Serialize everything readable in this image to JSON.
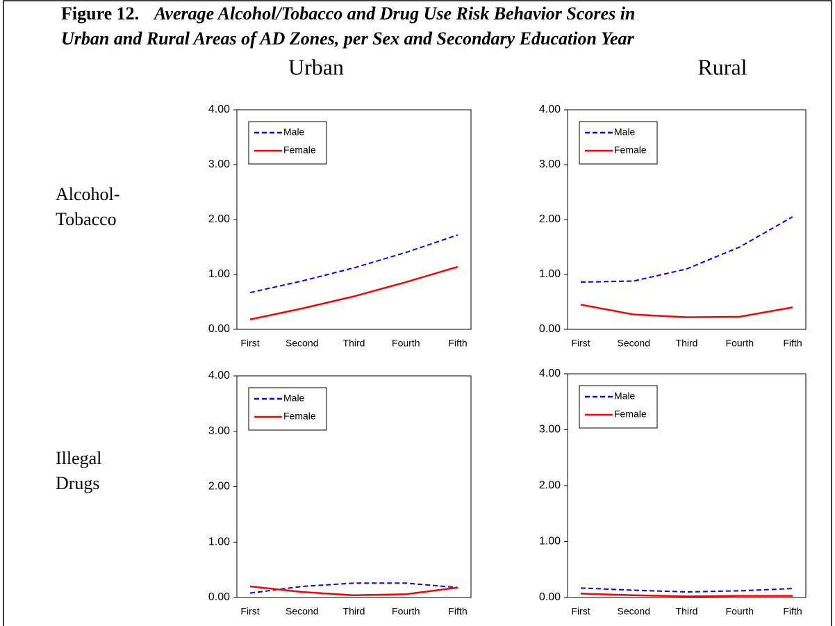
{
  "figure_label": "Figure 12.",
  "title_lines": [
    "Average Alcohol/Tobacco and Drug Use Risk Behavior Scores in",
    "Urban and Rural Areas of AD Zones, per Sex and Secondary Education Year"
  ],
  "columns": [
    "Urban",
    "Rural"
  ],
  "rows": [
    [
      "Alcohol-",
      "Tobacco"
    ],
    [
      "Illegal",
      "Drugs"
    ]
  ],
  "chart_data": [
    {
      "type": "line",
      "categories": [
        "First",
        "Second",
        "Third",
        "Fourth",
        "Fifth"
      ],
      "series": [
        {
          "name": "Male",
          "color": "#0000ff",
          "line_style": "dashed",
          "values": [
            0.67,
            0.88,
            1.12,
            1.4,
            1.72
          ]
        },
        {
          "name": "Female",
          "color": "#ff0000",
          "line_style": "solid",
          "values": [
            0.18,
            0.38,
            0.6,
            0.86,
            1.14
          ]
        }
      ],
      "ylim": [
        0,
        4
      ],
      "yticks": [
        {
          "value": 0,
          "label": "0.00"
        },
        {
          "value": 1,
          "label": "1.00"
        },
        {
          "value": 2,
          "label": "2.00"
        },
        {
          "value": 3,
          "label": "3.00"
        },
        {
          "value": 4,
          "label": "4.00"
        }
      ],
      "legend": "upper left"
    },
    {
      "type": "line",
      "categories": [
        "First",
        "Second",
        "Third",
        "Fourth",
        "Fifth"
      ],
      "series": [
        {
          "name": "Male",
          "color": "#0000ff",
          "line_style": "dashed",
          "values": [
            0.86,
            0.88,
            1.1,
            1.5,
            2.05
          ]
        },
        {
          "name": "Female",
          "color": "#ff0000",
          "line_style": "solid",
          "values": [
            0.45,
            0.27,
            0.22,
            0.23,
            0.4
          ]
        }
      ],
      "ylim": [
        0,
        4
      ],
      "yticks": [
        {
          "value": 0,
          "label": "0.00"
        },
        {
          "value": 1,
          "label": "1.00"
        },
        {
          "value": 2,
          "label": "2.00"
        },
        {
          "value": 3,
          "label": "3.00"
        },
        {
          "value": 4,
          "label": "4.00"
        }
      ],
      "legend": "upper left"
    },
    {
      "type": "line",
      "categories": [
        "First",
        "Second",
        "Third",
        "Fourth",
        "Fifth"
      ],
      "series": [
        {
          "name": "Male",
          "color": "#0000ff",
          "line_style": "dashed",
          "values": [
            0.08,
            0.2,
            0.26,
            0.26,
            0.18
          ]
        },
        {
          "name": "Female",
          "color": "#ff0000",
          "line_style": "solid",
          "values": [
            0.2,
            0.1,
            0.04,
            0.06,
            0.18
          ]
        }
      ],
      "ylim": [
        0,
        4
      ],
      "yticks": [
        {
          "value": 0,
          "label": "0.00"
        },
        {
          "value": 1,
          "label": "1.00"
        },
        {
          "value": 2,
          "label": "2.00"
        },
        {
          "value": 3,
          "label": "3.00"
        },
        {
          "value": 4,
          "label": "4.00"
        }
      ],
      "legend": "upper left"
    },
    {
      "type": "line",
      "categories": [
        "First",
        "Second",
        "Third",
        "Fourth",
        "Fifth"
      ],
      "series": [
        {
          "name": "Male",
          "color": "#0000ff",
          "line_style": "dashed",
          "values": [
            0.17,
            0.13,
            0.1,
            0.12,
            0.16
          ]
        },
        {
          "name": "Female",
          "color": "#ff0000",
          "line_style": "solid",
          "values": [
            0.07,
            0.04,
            0.02,
            0.03,
            0.03
          ]
        }
      ],
      "ylim": [
        0,
        4
      ],
      "yticks": [
        {
          "value": 0,
          "label": "0.00"
        },
        {
          "value": 1,
          "label": "1.00"
        },
        {
          "value": 2,
          "label": "2.00"
        },
        {
          "value": 3,
          "label": "3.00"
        },
        {
          "value": 4,
          "label": "4.00"
        }
      ],
      "legend": "upper left"
    }
  ]
}
